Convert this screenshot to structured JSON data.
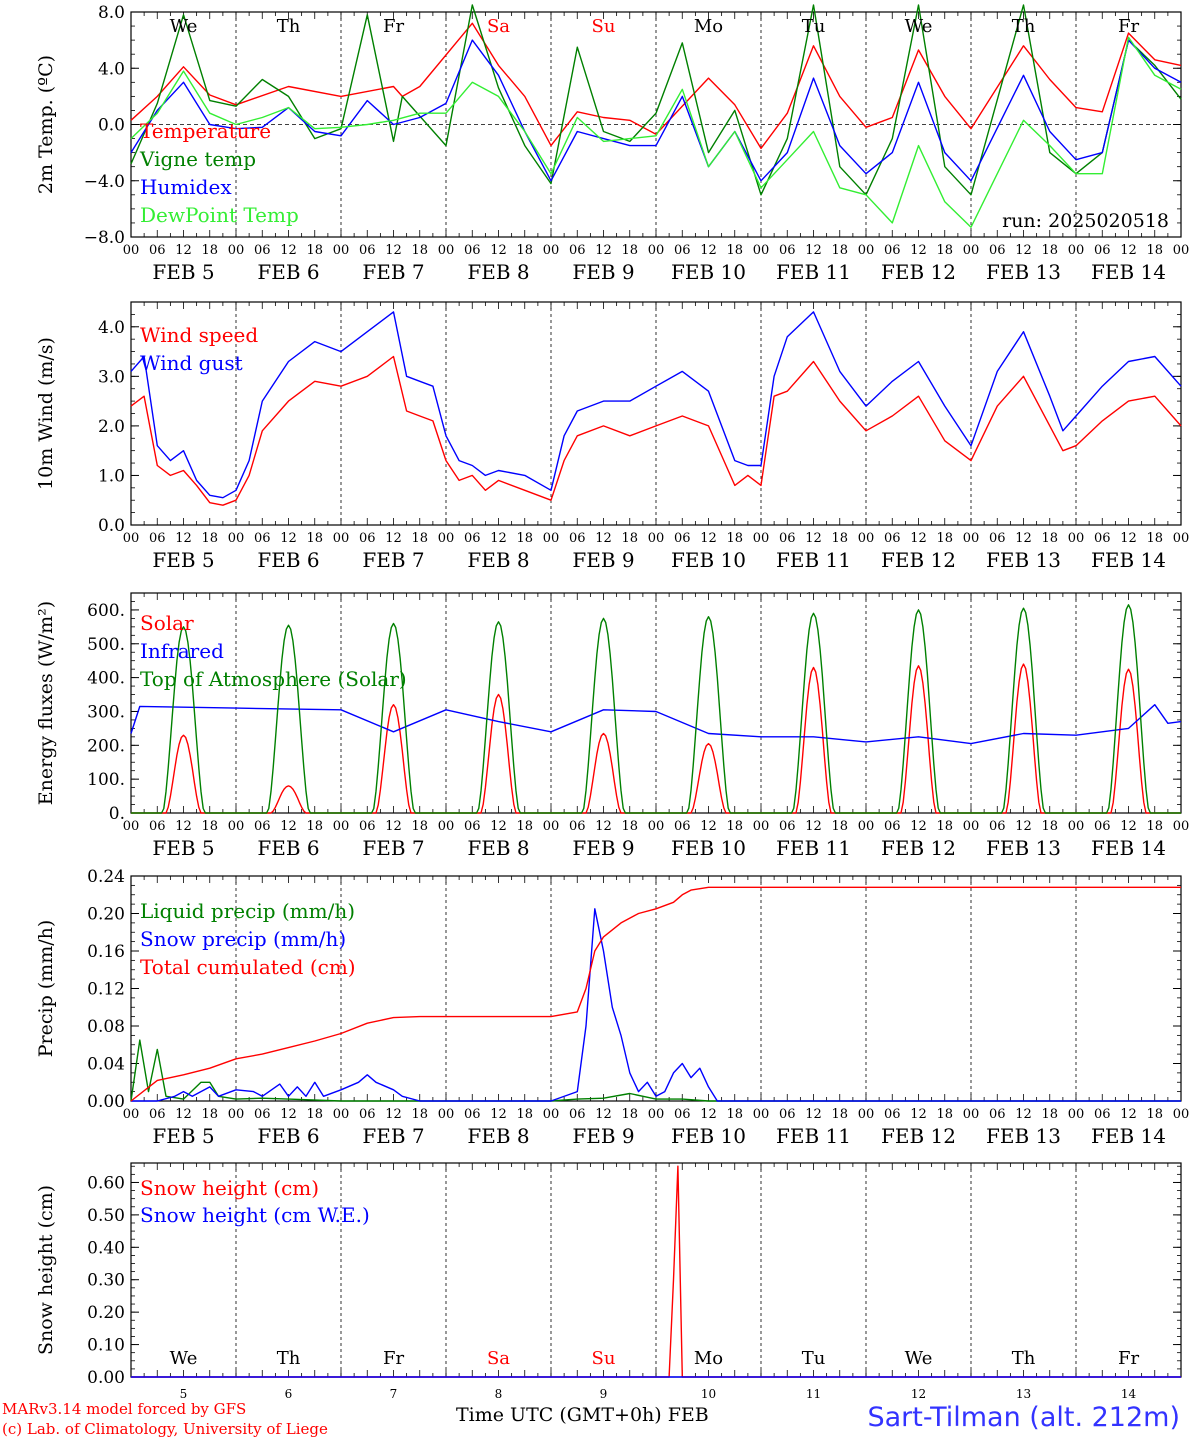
{
  "colors": {
    "red": "#ff0000",
    "green": "#008000",
    "blue": "#0000ff",
    "lime": "#33ee33",
    "black": "#000000"
  },
  "days": [
    "FEB 5",
    "FEB 6",
    "FEB 7",
    "FEB 8",
    "FEB 9",
    "FEB 10",
    "FEB 11",
    "FEB 12",
    "FEB 13",
    "FEB 14"
  ],
  "day_numbers": [
    "5",
    "6",
    "7",
    "8",
    "9",
    "10",
    "11",
    "12",
    "13",
    "14"
  ],
  "weekdays": [
    {
      "label": "We",
      "weekend": false
    },
    {
      "label": "Th",
      "weekend": false
    },
    {
      "label": "Fr",
      "weekend": false
    },
    {
      "label": "Sa",
      "weekend": true
    },
    {
      "label": "Su",
      "weekend": true
    },
    {
      "label": "Mo",
      "weekend": false
    },
    {
      "label": "Tu",
      "weekend": false
    },
    {
      "label": "We",
      "weekend": false
    },
    {
      "label": "Th",
      "weekend": false
    },
    {
      "label": "Fr",
      "weekend": false
    }
  ],
  "hour_ticks": [
    "00",
    "06",
    "12",
    "18"
  ],
  "run_label": "run: 2025020518",
  "month_label": "FEB",
  "xlabel": "Time UTC (GMT+0h)",
  "footer": {
    "model": "MARv3.14 model forced by GFS",
    "copyright": "(c) Lab. of Climatology, University of Liege",
    "station": "Sart-Tilman (alt. 212m)"
  },
  "chart_data": [
    {
      "type": "line",
      "ylabel": "2m Temp. (ºC)",
      "ylim": [
        -8,
        8
      ],
      "yticks": [
        "8.0",
        "4.0",
        "0.0",
        "−4.0",
        "−8.0"
      ],
      "ytick_values": [
        8,
        4,
        0,
        -4,
        -8
      ],
      "zero_line": true,
      "x_hours_from": "FEB 5 00",
      "series": [
        {
          "name": "Temperature",
          "color": "red",
          "x": [
            0,
            6,
            12,
            18,
            24,
            36,
            48,
            60,
            62,
            66,
            78,
            84,
            90,
            96,
            102,
            108,
            114,
            120,
            132,
            138,
            144,
            150,
            156,
            162,
            168,
            174,
            180,
            186,
            192,
            204,
            210,
            216,
            222,
            228,
            234,
            240
          ],
          "y": [
            0.3,
            2.0,
            4.1,
            2.1,
            1.4,
            2.7,
            2.0,
            2.7,
            2.0,
            2.7,
            7.2,
            4.2,
            2.0,
            -1.5,
            0.9,
            0.5,
            0.3,
            -0.7,
            3.3,
            1.4,
            -1.7,
            0.8,
            5.6,
            2.0,
            -0.2,
            0.5,
            5.3,
            2.0,
            -0.3,
            5.6,
            3.2,
            1.2,
            0.9,
            6.5,
            4.6,
            4.2
          ]
        },
        {
          "name": "Vigne temp",
          "color": "green",
          "x": [
            0,
            6,
            12,
            18,
            24,
            30,
            36,
            42,
            48,
            54,
            60,
            62,
            66,
            72,
            78,
            84,
            90,
            96,
            102,
            108,
            114,
            120,
            126,
            132,
            138,
            144,
            150,
            156,
            162,
            168,
            174,
            180,
            186,
            192,
            204,
            210,
            216,
            222,
            228,
            234,
            240
          ],
          "y": [
            -2.8,
            1.5,
            7.8,
            1.7,
            1.3,
            3.2,
            2.0,
            -1.0,
            -0.3,
            7.8,
            -1.2,
            2.0,
            0.6,
            -1.5,
            8.5,
            2.6,
            -1.5,
            -4.2,
            5.5,
            -0.5,
            -1.2,
            0.8,
            5.8,
            -2.0,
            1.0,
            -5.0,
            -1.0,
            8.5,
            -3.0,
            -5.0,
            -1.0,
            8.5,
            -3.0,
            -5.0,
            8.5,
            -2.0,
            -3.5,
            -2.0,
            6.0,
            4.2,
            1.8
          ]
        },
        {
          "name": "Humidex",
          "color": "blue",
          "x": [
            0,
            6,
            12,
            18,
            24,
            30,
            36,
            42,
            48,
            54,
            60,
            66,
            72,
            78,
            84,
            90,
            96,
            102,
            108,
            114,
            120,
            126,
            132,
            138,
            144,
            150,
            156,
            162,
            168,
            174,
            180,
            186,
            192,
            204,
            210,
            216,
            222,
            228,
            234,
            240
          ],
          "y": [
            -2.0,
            1.0,
            3.0,
            0.0,
            -0.3,
            -0.2,
            1.2,
            -0.5,
            -0.8,
            1.7,
            0.0,
            0.5,
            1.5,
            6.0,
            3.5,
            -0.5,
            -4.0,
            -0.5,
            -1.0,
            -1.5,
            -1.5,
            2.0,
            -3.0,
            -0.5,
            -4.0,
            -2.0,
            3.3,
            -1.5,
            -3.5,
            -2.0,
            3.0,
            -2.0,
            -4.0,
            3.5,
            -0.5,
            -2.5,
            -2.0,
            6.0,
            4.0,
            3.0
          ]
        },
        {
          "name": "DewPoint Temp",
          "color": "lime",
          "x": [
            0,
            6,
            12,
            18,
            24,
            30,
            36,
            42,
            48,
            54,
            60,
            66,
            72,
            78,
            84,
            90,
            96,
            102,
            108,
            114,
            120,
            126,
            132,
            138,
            144,
            150,
            156,
            162,
            168,
            174,
            180,
            186,
            192,
            204,
            210,
            216,
            222,
            228,
            234,
            240
          ],
          "y": [
            -1.0,
            0.8,
            3.8,
            0.8,
            0.0,
            0.5,
            1.2,
            -0.3,
            -0.2,
            0.0,
            0.3,
            0.8,
            0.8,
            3.0,
            2.0,
            -0.5,
            -3.5,
            0.5,
            -1.2,
            -1.0,
            -0.8,
            2.5,
            -3.0,
            -0.5,
            -4.5,
            -2.5,
            -0.5,
            -4.5,
            -5.0,
            -7.0,
            -1.5,
            -5.5,
            -7.3,
            0.3,
            -1.5,
            -3.5,
            -3.5,
            6.2,
            3.5,
            2.5
          ]
        }
      ]
    },
    {
      "type": "line",
      "ylabel": "10m Wind (m/s)",
      "ylim": [
        0,
        4.5
      ],
      "yticks": [
        "4.0",
        "3.0",
        "2.0",
        "1.0",
        "0.0"
      ],
      "ytick_values": [
        4,
        3,
        2,
        1,
        0
      ],
      "series": [
        {
          "name": "Wind speed",
          "color": "red",
          "x": [
            0,
            3,
            6,
            9,
            12,
            15,
            18,
            21,
            24,
            27,
            30,
            36,
            42,
            48,
            54,
            60,
            63,
            66,
            69,
            72,
            75,
            78,
            81,
            84,
            90,
            96,
            99,
            102,
            108,
            114,
            120,
            126,
            132,
            138,
            141,
            144,
            147,
            150,
            156,
            162,
            168,
            174,
            180,
            186,
            192,
            198,
            204,
            210,
            213,
            216,
            222,
            228,
            234,
            240
          ],
          "y": [
            2.4,
            2.6,
            1.2,
            1.0,
            1.1,
            0.8,
            0.45,
            0.4,
            0.5,
            1.0,
            1.9,
            2.5,
            2.9,
            2.8,
            3.0,
            3.4,
            2.3,
            2.2,
            2.1,
            1.3,
            0.9,
            1.0,
            0.7,
            0.9,
            0.7,
            0.5,
            1.3,
            1.8,
            2.0,
            1.8,
            2.0,
            2.2,
            2.0,
            0.8,
            1.0,
            0.8,
            2.6,
            2.7,
            3.3,
            2.5,
            1.9,
            2.2,
            2.6,
            1.7,
            1.3,
            2.4,
            3.0,
            2.0,
            1.5,
            1.6,
            2.1,
            2.5,
            2.6,
            2.0
          ]
        },
        {
          "name": "Wind gust",
          "color": "blue",
          "x": [
            0,
            3,
            6,
            9,
            12,
            15,
            18,
            21,
            24,
            27,
            30,
            36,
            42,
            48,
            54,
            60,
            63,
            66,
            69,
            72,
            75,
            78,
            81,
            84,
            90,
            96,
            99,
            102,
            108,
            114,
            120,
            126,
            132,
            138,
            141,
            144,
            147,
            150,
            156,
            162,
            168,
            174,
            180,
            186,
            192,
            198,
            204,
            210,
            213,
            216,
            222,
            228,
            234,
            240
          ],
          "y": [
            3.1,
            3.4,
            1.6,
            1.3,
            1.5,
            0.9,
            0.6,
            0.55,
            0.7,
            1.3,
            2.5,
            3.3,
            3.7,
            3.5,
            3.9,
            4.3,
            3.0,
            2.9,
            2.8,
            1.8,
            1.3,
            1.2,
            1.0,
            1.1,
            1.0,
            0.7,
            1.8,
            2.3,
            2.5,
            2.5,
            2.8,
            3.1,
            2.7,
            1.3,
            1.2,
            1.2,
            3.0,
            3.8,
            4.3,
            3.1,
            2.4,
            2.9,
            3.3,
            2.4,
            1.6,
            3.1,
            3.9,
            2.6,
            1.9,
            2.2,
            2.8,
            3.3,
            3.4,
            2.8
          ]
        }
      ]
    },
    {
      "type": "line",
      "ylabel": "Energy fluxes (W/m²)",
      "ylim": [
        0,
        650
      ],
      "yticks": [
        "600.",
        "500.",
        "400.",
        "300.",
        "200.",
        "100.",
        "0."
      ],
      "ytick_values": [
        600,
        500,
        400,
        300,
        200,
        100,
        0
      ],
      "series": [
        {
          "name": "Solar",
          "color": "red",
          "peaks": [
            230,
            80,
            320,
            350,
            235,
            205,
            430,
            435,
            440,
            425
          ]
        },
        {
          "name": "Infrared",
          "color": "blue",
          "x": [
            0,
            2,
            24,
            48,
            60,
            72,
            84,
            96,
            108,
            120,
            132,
            144,
            156,
            168,
            180,
            192,
            204,
            216,
            228,
            234,
            237,
            240
          ],
          "y": [
            235,
            315,
            310,
            305,
            240,
            305,
            270,
            240,
            305,
            300,
            235,
            225,
            225,
            210,
            225,
            205,
            235,
            230,
            250,
            320,
            265,
            270
          ]
        },
        {
          "name": "Top of Atmosphere (Solar)",
          "color": "green",
          "peaks": [
            550,
            555,
            560,
            565,
            575,
            580,
            590,
            600,
            605,
            615
          ]
        }
      ]
    },
    {
      "type": "line",
      "ylabel": "Precip (mm/h)",
      "ylim": [
        0,
        0.24
      ],
      "yticks": [
        "0.24",
        "0.20",
        "0.16",
        "0.12",
        "0.08",
        "0.04",
        "0.00"
      ],
      "ytick_values": [
        0.24,
        0.2,
        0.16,
        0.12,
        0.08,
        0.04,
        0
      ],
      "series": [
        {
          "name": "Liquid precip (mm/h)",
          "color": "green",
          "x": [
            0,
            2,
            4,
            6,
            8,
            12,
            16,
            18,
            20,
            24,
            30,
            36,
            48,
            60,
            72,
            96,
            102,
            108,
            114,
            120,
            126,
            132,
            240
          ],
          "y": [
            0,
            0.065,
            0.01,
            0.055,
            0.005,
            0.002,
            0.02,
            0.02,
            0.005,
            0.002,
            0.003,
            0.002,
            0,
            0,
            0,
            0,
            0.002,
            0.003,
            0.008,
            0.002,
            0.002,
            0,
            0
          ]
        },
        {
          "name": "Snow precip (mm/h)",
          "color": "blue",
          "x": [
            0,
            6,
            10,
            12,
            14,
            18,
            20,
            24,
            28,
            30,
            34,
            36,
            38,
            40,
            42,
            44,
            48,
            52,
            54,
            56,
            60,
            62,
            66,
            72,
            96,
            102,
            104,
            106,
            108,
            110,
            112,
            114,
            116,
            118,
            120,
            122,
            124,
            126,
            128,
            130,
            132,
            134,
            240
          ],
          "y": [
            0,
            0,
            0.005,
            0.01,
            0.005,
            0.015,
            0.005,
            0.012,
            0.01,
            0.005,
            0.018,
            0.005,
            0.015,
            0.005,
            0.02,
            0.005,
            0.012,
            0.02,
            0.028,
            0.02,
            0.012,
            0.005,
            0,
            0,
            0,
            0.01,
            0.08,
            0.205,
            0.16,
            0.1,
            0.07,
            0.03,
            0.01,
            0.02,
            0.005,
            0.01,
            0.03,
            0.04,
            0.025,
            0.035,
            0.015,
            0,
            0
          ]
        },
        {
          "name": "Total cumulated (cm)",
          "color": "red",
          "x": [
            0,
            6,
            12,
            18,
            24,
            30,
            36,
            42,
            48,
            54,
            60,
            66,
            72,
            84,
            96,
            102,
            104,
            106,
            108,
            112,
            116,
            120,
            124,
            126,
            128,
            132,
            240
          ],
          "y": [
            0,
            0.022,
            0.028,
            0.035,
            0.045,
            0.05,
            0.057,
            0.064,
            0.072,
            0.083,
            0.089,
            0.09,
            0.09,
            0.09,
            0.09,
            0.095,
            0.12,
            0.16,
            0.175,
            0.19,
            0.2,
            0.205,
            0.212,
            0.22,
            0.225,
            0.228,
            0.228
          ]
        }
      ]
    },
    {
      "type": "line",
      "ylabel": "Snow height (cm)",
      "ylim": [
        0,
        0.66
      ],
      "yticks": [
        "0.60",
        "0.50",
        "0.40",
        "0.30",
        "0.20",
        "0.10",
        "0.00"
      ],
      "ytick_values": [
        0.6,
        0.5,
        0.4,
        0.3,
        0.2,
        0.1,
        0
      ],
      "series": [
        {
          "name": "Snow height (cm)",
          "color": "red",
          "x": [
            0,
            123,
            124,
            125,
            126,
            240
          ],
          "y": [
            0,
            0,
            0.3,
            0.65,
            0,
            0
          ]
        },
        {
          "name": "Snow height (cm W.E.)",
          "color": "blue",
          "x": [
            0,
            240
          ],
          "y": [
            0,
            0
          ]
        }
      ]
    }
  ]
}
